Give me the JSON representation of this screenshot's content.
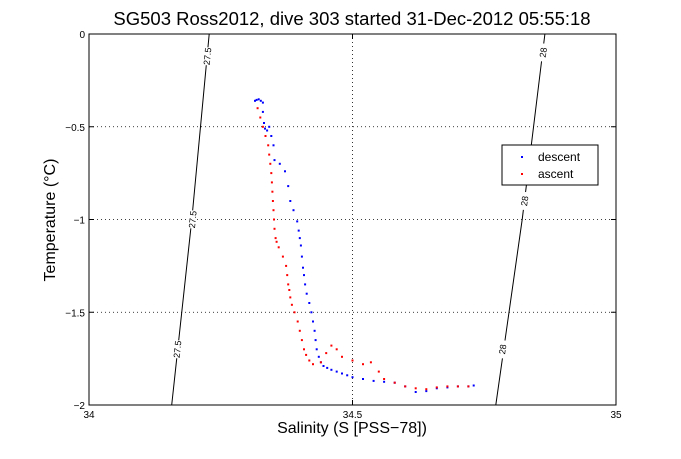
{
  "chart_data": {
    "type": "scatter",
    "title": "SG503 Ross2012, dive 303 started 31-Dec-2012 05:55:18",
    "xlabel": "Salinity (S [PSS−78])",
    "ylabel": "Temperature (°C)",
    "xlim": [
      34,
      35
    ],
    "ylim": [
      -2,
      0
    ],
    "x_ticks": [
      34,
      34.5,
      35
    ],
    "x_tick_labels": [
      "34",
      "34.5",
      "35"
    ],
    "y_ticks": [
      0,
      -0.5,
      -1,
      -1.5,
      -2
    ],
    "y_tick_labels": [
      "0",
      "−0.5",
      "−1",
      "−1.5",
      "−2"
    ],
    "grid": true,
    "legend_position": "right",
    "series": [
      {
        "name": "descent",
        "color": "#0000ff",
        "points": [
          [
            34.315,
            -0.36
          ],
          [
            34.318,
            -0.355
          ],
          [
            34.322,
            -0.352
          ],
          [
            34.326,
            -0.36
          ],
          [
            34.33,
            -0.37
          ],
          [
            34.33,
            -0.42
          ],
          [
            34.332,
            -0.48
          ],
          [
            34.334,
            -0.51
          ],
          [
            34.338,
            -0.52
          ],
          [
            34.342,
            -0.5
          ],
          [
            34.346,
            -0.55
          ],
          [
            34.35,
            -0.6
          ],
          [
            34.352,
            -0.68
          ],
          [
            34.362,
            -0.7
          ],
          [
            34.372,
            -0.74
          ],
          [
            34.378,
            -0.82
          ],
          [
            34.382,
            -0.9
          ],
          [
            34.388,
            -0.95
          ],
          [
            34.395,
            -1.01
          ],
          [
            34.398,
            -1.06
          ],
          [
            34.4,
            -1.1
          ],
          [
            34.402,
            -1.14
          ],
          [
            34.404,
            -1.2
          ],
          [
            34.406,
            -1.26
          ],
          [
            34.408,
            -1.3
          ],
          [
            34.41,
            -1.35
          ],
          [
            34.413,
            -1.4
          ],
          [
            34.418,
            -1.45
          ],
          [
            34.422,
            -1.5
          ],
          [
            34.425,
            -1.55
          ],
          [
            34.428,
            -1.6
          ],
          [
            34.43,
            -1.65
          ],
          [
            34.432,
            -1.7
          ],
          [
            34.436,
            -1.74
          ],
          [
            34.44,
            -1.77
          ],
          [
            34.445,
            -1.79
          ],
          [
            34.452,
            -1.8
          ],
          [
            34.46,
            -1.81
          ],
          [
            34.47,
            -1.82
          ],
          [
            34.48,
            -1.83
          ],
          [
            34.49,
            -1.84
          ],
          [
            34.5,
            -1.85
          ],
          [
            34.52,
            -1.86
          ],
          [
            34.54,
            -1.87
          ],
          [
            34.56,
            -1.875
          ],
          [
            34.58,
            -1.88
          ],
          [
            34.6,
            -1.9
          ],
          [
            34.62,
            -1.93
          ],
          [
            34.64,
            -1.925
          ],
          [
            34.66,
            -1.91
          ],
          [
            34.68,
            -1.905
          ],
          [
            34.7,
            -1.9
          ],
          [
            34.72,
            -1.9
          ],
          [
            34.73,
            -1.895
          ]
        ]
      },
      {
        "name": "ascent",
        "color": "#ff0000",
        "points": [
          [
            34.32,
            -0.4
          ],
          [
            34.325,
            -0.45
          ],
          [
            34.33,
            -0.5
          ],
          [
            34.335,
            -0.55
          ],
          [
            34.34,
            -0.6
          ],
          [
            34.342,
            -0.65
          ],
          [
            34.344,
            -0.7
          ],
          [
            34.346,
            -0.75
          ],
          [
            34.347,
            -0.8
          ],
          [
            34.348,
            -0.85
          ],
          [
            34.349,
            -0.9
          ],
          [
            34.35,
            -0.95
          ],
          [
            34.351,
            -1.0
          ],
          [
            34.352,
            -1.05
          ],
          [
            34.354,
            -1.1
          ],
          [
            34.356,
            -1.12
          ],
          [
            34.36,
            -1.15
          ],
          [
            34.368,
            -1.2
          ],
          [
            34.374,
            -1.25
          ],
          [
            34.376,
            -1.3
          ],
          [
            34.378,
            -1.35
          ],
          [
            34.38,
            -1.38
          ],
          [
            34.382,
            -1.42
          ],
          [
            34.385,
            -1.46
          ],
          [
            34.39,
            -1.5
          ],
          [
            34.396,
            -1.55
          ],
          [
            34.4,
            -1.6
          ],
          [
            34.404,
            -1.65
          ],
          [
            34.408,
            -1.7
          ],
          [
            34.412,
            -1.73
          ],
          [
            34.418,
            -1.76
          ],
          [
            34.425,
            -1.78
          ],
          [
            34.44,
            -1.77
          ],
          [
            34.45,
            -1.72
          ],
          [
            34.46,
            -1.68
          ],
          [
            34.47,
            -1.7
          ],
          [
            34.48,
            -1.74
          ],
          [
            34.5,
            -1.76
          ],
          [
            34.52,
            -1.78
          ],
          [
            34.535,
            -1.77
          ],
          [
            34.55,
            -1.82
          ],
          [
            34.56,
            -1.86
          ],
          [
            34.58,
            -1.88
          ],
          [
            34.6,
            -1.9
          ],
          [
            34.62,
            -1.91
          ],
          [
            34.64,
            -1.915
          ],
          [
            34.66,
            -1.905
          ],
          [
            34.68,
            -1.9
          ],
          [
            34.7,
            -1.9
          ],
          [
            34.72,
            -1.9
          ]
        ]
      }
    ],
    "isopycnals": [
      {
        "label": "27.5",
        "color": "#000000",
        "points": [
          [
            34.157,
            -2.0
          ],
          [
            34.195,
            -1.0
          ],
          [
            34.228,
            0.0
          ]
        ],
        "label_positions": [
          [
            34.168,
            -1.7
          ],
          [
            34.197,
            -1.0
          ],
          [
            34.225,
            -0.12
          ]
        ]
      },
      {
        "label": "28",
        "color": "#000000",
        "points": [
          [
            34.772,
            -2.0
          ],
          [
            34.822,
            -1.0
          ],
          [
            34.865,
            0.0
          ]
        ],
        "label_positions": [
          [
            34.785,
            -1.7
          ],
          [
            34.827,
            -0.9
          ],
          [
            34.862,
            -0.1
          ]
        ]
      }
    ]
  }
}
